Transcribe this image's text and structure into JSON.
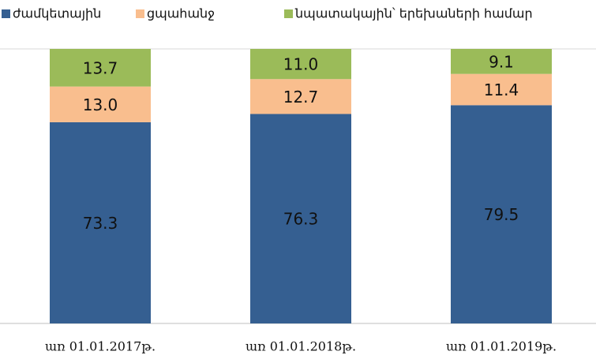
{
  "chart_data": {
    "type": "stacked_bar",
    "categories": [
      "առ 01.01.2017թ.",
      "առ 01.01.2018թ.",
      "առ 01.01.2019թ."
    ],
    "series": [
      {
        "name": "ժամկետային",
        "color": "#355f91",
        "values": [
          73.3,
          76.3,
          79.5
        ],
        "value_labels": [
          "73.3",
          "76.3",
          "79.5"
        ]
      },
      {
        "name": "ցպահանջ",
        "color": "#f9be8e",
        "values": [
          13.0,
          12.7,
          11.4
        ],
        "value_labels": [
          "13.0",
          "12.7",
          "11.4"
        ]
      },
      {
        "name": "նպատակային՝ երեխաների համար",
        "color": "#9bbb59",
        "values": [
          13.7,
          11.0,
          9.1
        ],
        "value_labels": [
          "13.7",
          "11.0",
          "9.1"
        ]
      }
    ],
    "ylim": [
      0,
      100
    ]
  }
}
